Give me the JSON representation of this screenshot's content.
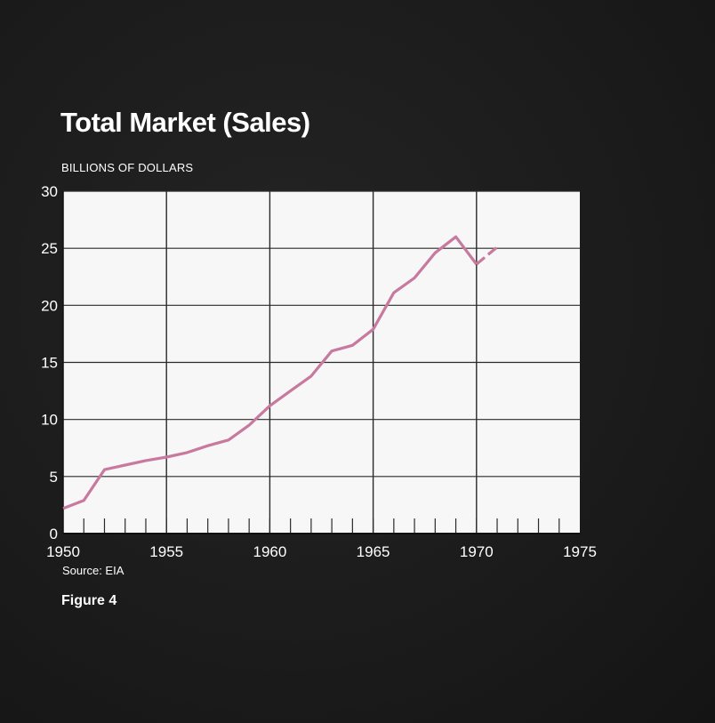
{
  "chart_data": {
    "type": "line",
    "title": "Total Market (Sales)",
    "ylabel": "BILLIONS OF DOLLARS",
    "xlabel": "",
    "xlim": [
      1950,
      1975
    ],
    "ylim": [
      0,
      30
    ],
    "x_ticks": [
      1950,
      1955,
      1960,
      1965,
      1970,
      1975
    ],
    "y_ticks": [
      0,
      5,
      10,
      15,
      20,
      25,
      30
    ],
    "grid": true,
    "series": [
      {
        "color": "#c8799e",
        "line_style": "solid",
        "x": [
          1950,
          1951,
          1952,
          1953,
          1954,
          1955,
          1956,
          1957,
          1958,
          1959,
          1960,
          1961,
          1962,
          1963,
          1964,
          1965,
          1966,
          1967,
          1968,
          1969,
          1970
        ],
        "y": [
          2.2,
          2.9,
          5.6,
          6.0,
          6.4,
          6.7,
          7.1,
          7.7,
          8.2,
          9.5,
          11.2,
          12.5,
          13.8,
          16.0,
          16.5,
          17.9,
          21.1,
          22.4,
          24.6,
          26.0,
          23.6
        ]
      },
      {
        "color": "#c8799e",
        "line_style": "dashed",
        "x": [
          1970,
          1971
        ],
        "y": [
          23.6,
          25.1
        ]
      }
    ]
  },
  "source_note": "Source: EIA",
  "figure_label": "Figure 4",
  "colors": {
    "background": "#1c1c1c",
    "plot_area": "#f7f7f7",
    "grid": "#2a2a2a",
    "line": "#c8799e",
    "text": "#ffffff"
  }
}
